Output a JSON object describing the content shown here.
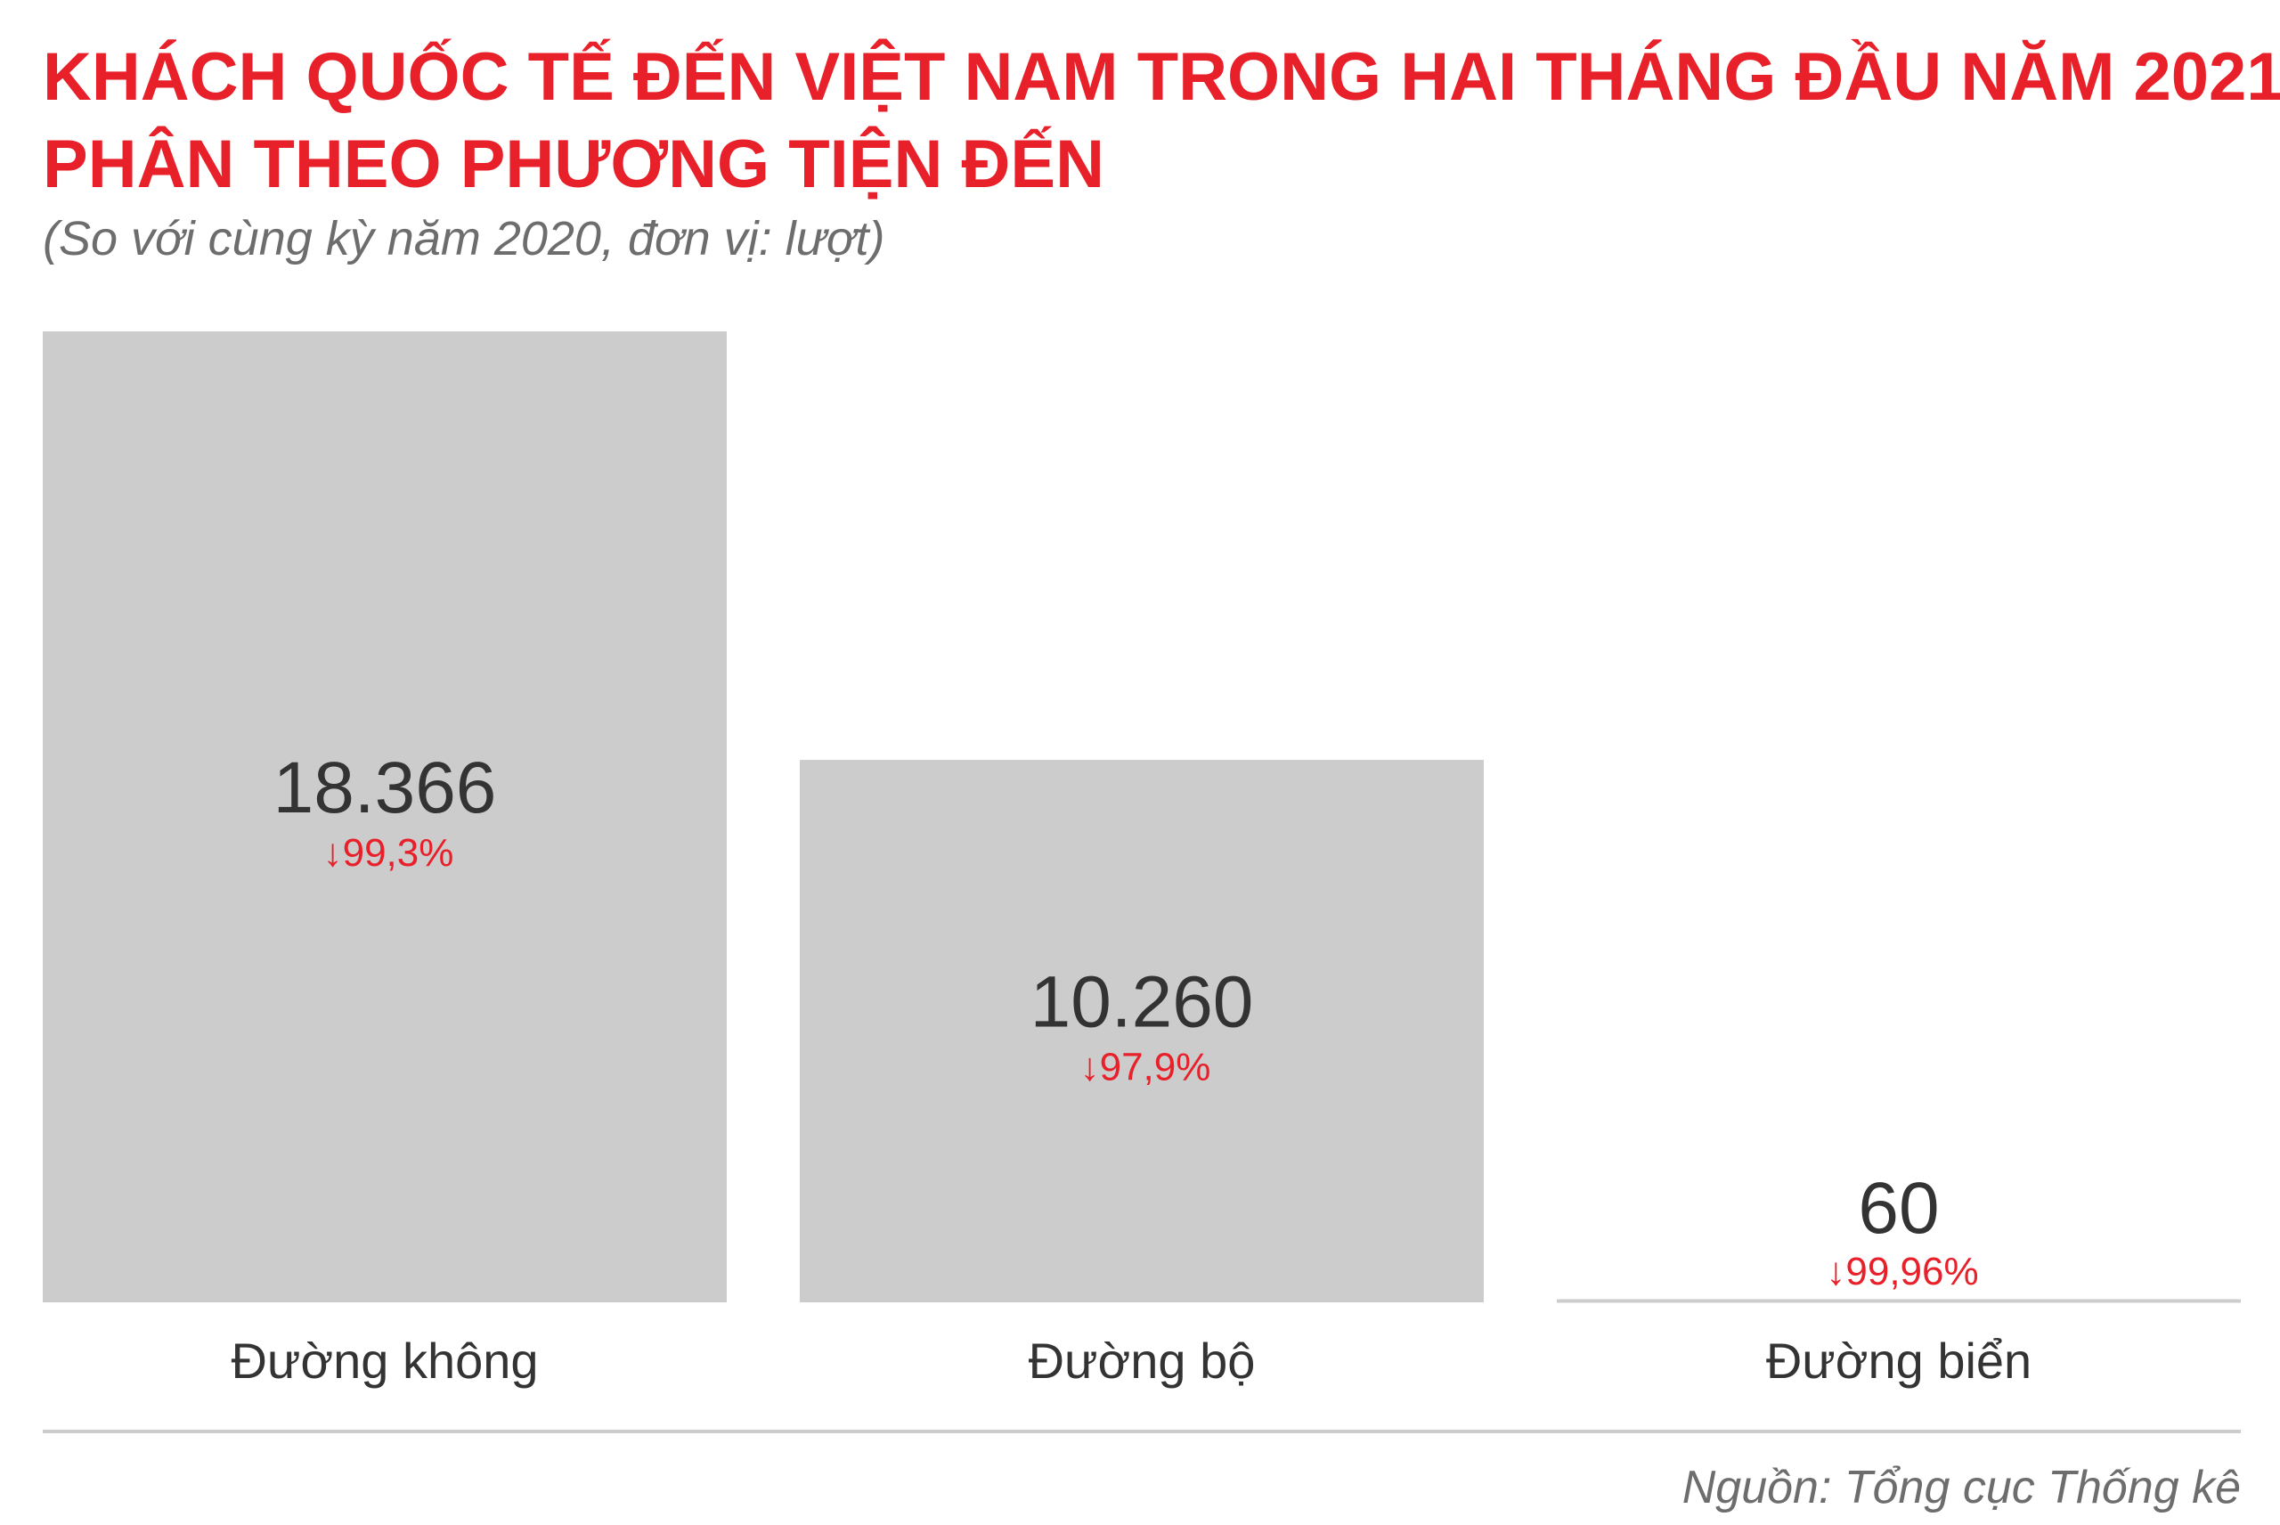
{
  "title_lines": [
    "KHÁCH QUỐC TẾ ĐẾN VIỆT NAM TRONG HAI THÁNG ĐẦU NĂM 2021",
    "PHÂN THEO PHƯƠNG TIỆN ĐẾN"
  ],
  "subtitle": "(So với cùng kỳ năm 2020, đơn vị: lượt)",
  "source": "Nguồn: Tổng cục Thống kê",
  "colors": {
    "title": "#e8202a",
    "bar": "#cccccc",
    "value_text": "#333333",
    "change_text": "#e8202a",
    "axis": "#cccccc",
    "muted_text": "#6d6d6d"
  },
  "chart_data": {
    "type": "bar",
    "title": "KHÁCH QUỐC TẾ ĐẾN VIỆT NAM TRONG HAI THÁNG ĐẦU NĂM 2021 PHÂN THEO PHƯƠNG TIỆN ĐẾN",
    "subtitle": "(So với cùng kỳ năm 2020, đơn vị: lượt)",
    "xlabel": "",
    "ylabel": "",
    "categories": [
      "Đường không",
      "Đường bộ",
      "Đường biển"
    ],
    "values": [
      18366,
      10260,
      60
    ],
    "value_labels": [
      "18.366",
      "10.260",
      "60"
    ],
    "change_labels": [
      "99,3%",
      "97,9%",
      "99,96%"
    ],
    "change_direction": "down",
    "ylim": [
      0,
      18366
    ],
    "grid": false,
    "legend": "none"
  }
}
